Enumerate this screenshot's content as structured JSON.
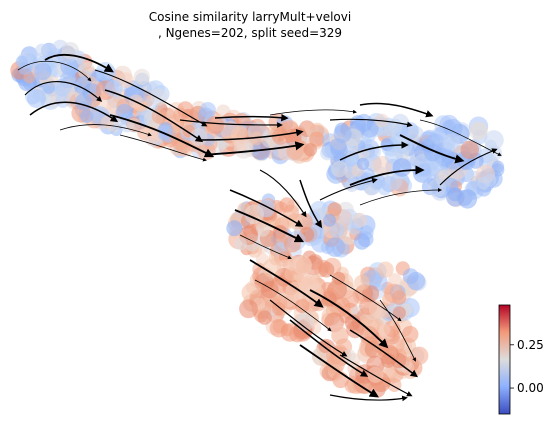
{
  "chart_data": {
    "type": "scatter",
    "subtype": "velocity-streamplot-embedding",
    "title": "Cosine similarity larryMult+velovi",
    "subtitle": ", Ngenes=202, split seed=329",
    "xlabel": "",
    "ylabel": "",
    "axes_visible": false,
    "grid": false,
    "colormap": "coolwarm",
    "colorbar": {
      "position": "right-bottom",
      "vmin": -0.15,
      "vmax": 0.48,
      "ticks": [
        0.0,
        0.25
      ],
      "tick_labels": [
        "0.00",
        "0.25"
      ]
    },
    "streamlines": {
      "color": "#000000",
      "arrows": true
    }
  }
}
